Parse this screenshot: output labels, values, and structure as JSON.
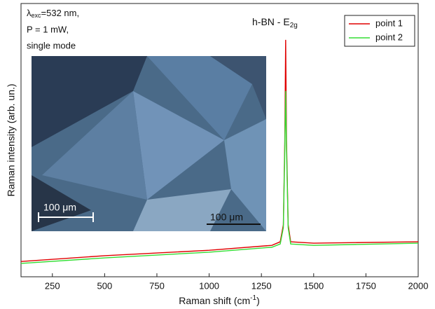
{
  "chart_data": {
    "type": "line",
    "annotation": {
      "main": "h-BN - E",
      "sub": "2g"
    },
    "conditions": [
      {
        "lambda": "λ",
        "sub": "exc",
        "rest": "=532 nm,"
      },
      "P = 1 mW,",
      "single mode"
    ],
    "inset": {
      "scale_bar_labels": [
        "100 μm",
        "100 μm"
      ]
    },
    "x_label": {
      "main": "Raman shift (cm",
      "sup": "-1",
      "end": ")"
    },
    "y_label": "Raman intensity (arb. un.)",
    "x": [
      100,
      500,
      1000,
      1300,
      1340,
      1355,
      1362,
      1366,
      1370,
      1378,
      1390,
      1500,
      2000
    ],
    "series": [
      {
        "name": "point 1",
        "color": "#e00000",
        "values": [
          5.6,
          7.7,
          9.7,
          11.5,
          12.8,
          19,
          50,
          86.7,
          50,
          19,
          12.8,
          12.3,
          12.8
        ]
      },
      {
        "name": "point 2",
        "color": "#33dd33",
        "values": [
          4.9,
          6.9,
          9,
          10.8,
          12,
          18,
          47,
          68,
          47,
          18,
          12,
          11.5,
          12.3
        ]
      }
    ],
    "xlim": [
      100,
      2000
    ],
    "xticks": [
      250,
      500,
      750,
      1000,
      1250,
      1500,
      1750,
      2000
    ],
    "ylim": [
      0,
      100
    ],
    "legend": "upper right"
  }
}
